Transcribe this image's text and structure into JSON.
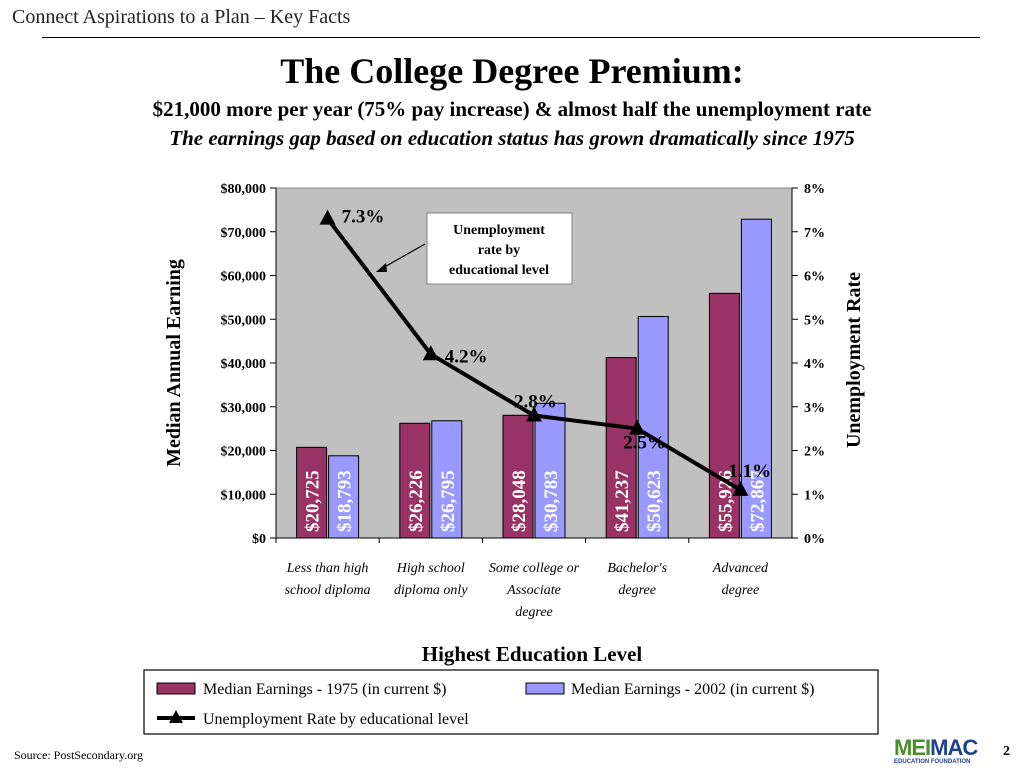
{
  "header": {
    "text": "Connect Aspirations to a Plan – Key Facts"
  },
  "title": "The College Degree Premium:",
  "subtitle": "$21,000 more per year (75% pay increase) & almost half the unemployment rate",
  "subtitle2": "The earnings gap based on education status has grown dramatically since 1975",
  "chart_data": {
    "type": "bar",
    "categories": [
      [
        "Less than high",
        "school diploma"
      ],
      [
        "High school",
        "diploma only"
      ],
      [
        "Some college or",
        "Associate",
        "degree"
      ],
      [
        "Bachelor's",
        "degree"
      ],
      [
        "Advanced",
        "degree"
      ]
    ],
    "series": [
      {
        "name": "Median Earnings - 1975 (in current $)",
        "values": [
          20725,
          26226,
          28048,
          41237,
          55926
        ],
        "labels": [
          "$20,725",
          "$26,226",
          "$28,048",
          "$41,237",
          "$55,926"
        ],
        "color": "#993366"
      },
      {
        "name": "Median Earnings - 2002 (in current $)",
        "values": [
          18793,
          26795,
          30783,
          50623,
          72867
        ],
        "labels": [
          "$18,793",
          "$26,795",
          "$30,783",
          "$50,623",
          "$72,867"
        ],
        "color": "#9999ff"
      }
    ],
    "line_series": {
      "name": "Unemployment Rate by educational level",
      "values": [
        7.3,
        4.2,
        2.8,
        2.5,
        1.1
      ],
      "labels": [
        "7.3%",
        "4.2%",
        "2.8%",
        "2.5%",
        "1.1%"
      ],
      "color": "#000000"
    },
    "xlabel": "Highest Education Level",
    "ylabel": "Median Annual Earning",
    "y2label": "Unemployment Rate",
    "ylim": [
      0,
      80000
    ],
    "y2lim": [
      0,
      8
    ],
    "yticks": [
      "$0",
      "$10,000",
      "$20,000",
      "$30,000",
      "$40,000",
      "$50,000",
      "$60,000",
      "$70,000",
      "$80,000"
    ],
    "y2ticks": [
      "0%",
      "1%",
      "2%",
      "3%",
      "4%",
      "5%",
      "6%",
      "7%",
      "8%"
    ],
    "annotation": [
      "Unemployment",
      "rate by",
      "educational level"
    ],
    "plot_background": "#c0c0c0",
    "grid": false,
    "legend_position": "bottom"
  },
  "footer": {
    "source": "Source: PostSecondary.org",
    "page": "2",
    "logo_part1": "MEI",
    "logo_part2": "MAC",
    "logo_sub": "EDUCATION FOUNDATION"
  }
}
